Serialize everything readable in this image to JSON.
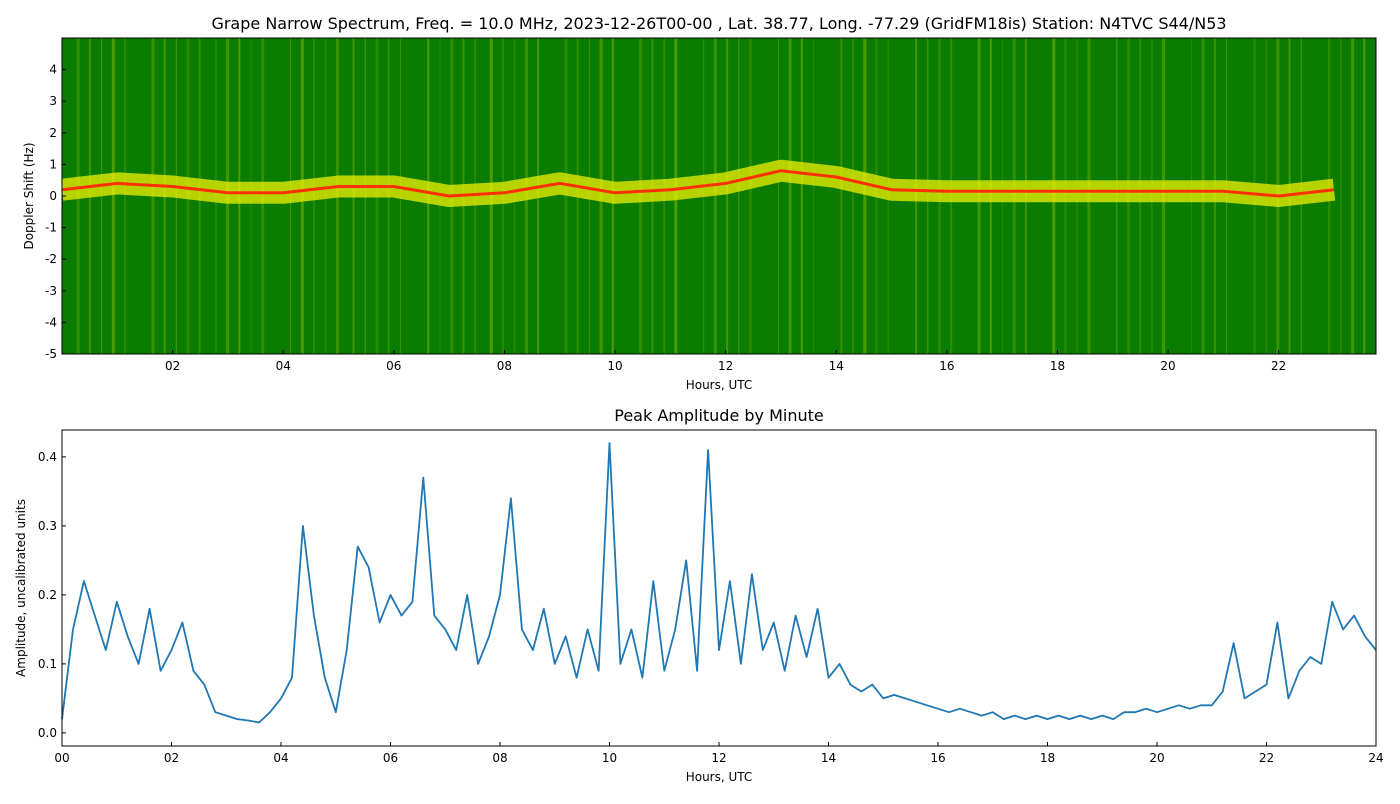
{
  "chart_data": [
    {
      "type": "spectrogram",
      "title": "Grape Narrow Spectrum, Freq. = 10.0 MHz, 2023-12-26T00-00 , Lat.  38.77, Long. -77.29 (GridFM18is) Station: N4TVC S44/N53",
      "x_label": "Hours, UTC",
      "y_label": "Doppler Shift (Hz)",
      "xlim": [
        0,
        23.76
      ],
      "ylim": [
        -5,
        5
      ],
      "xticks": [
        {
          "value": 2,
          "label": "02"
        },
        {
          "value": 4,
          "label": "04"
        },
        {
          "value": 6,
          "label": "06"
        },
        {
          "value": 8,
          "label": "08"
        },
        {
          "value": 10,
          "label": "10"
        },
        {
          "value": 12,
          "label": "12"
        },
        {
          "value": 14,
          "label": "14"
        },
        {
          "value": 16,
          "label": "16"
        },
        {
          "value": 18,
          "label": "18"
        },
        {
          "value": 20,
          "label": "20"
        },
        {
          "value": 22,
          "label": "22"
        }
      ],
      "yticks": [
        -5,
        -4,
        -3,
        -2,
        -1,
        0,
        1,
        2,
        3,
        4
      ],
      "background_color": "#0a7d00",
      "band_color": "#f0f000",
      "peak_color": "#ff3000",
      "x": [
        0,
        1,
        2,
        3,
        4,
        5,
        6,
        7,
        8,
        9,
        10,
        11,
        12,
        13,
        14,
        15,
        16,
        17,
        18,
        19,
        20,
        21,
        22,
        23
      ],
      "values": [
        0.2,
        0.4,
        0.3,
        0.1,
        0.1,
        0.3,
        0.3,
        0.0,
        0.1,
        0.4,
        0.1,
        0.2,
        0.4,
        0.8,
        0.6,
        0.2,
        0.15,
        0.15,
        0.15,
        0.15,
        0.15,
        0.15,
        0.0,
        0.2
      ]
    },
    {
      "type": "line",
      "title": "Peak Amplitude by Minute",
      "x_label": "Hours, UTC",
      "y_label": "Amplitude, uncalibrated units",
      "color": "#1f77b4",
      "xlim": [
        0,
        24
      ],
      "ylim": [
        -0.019,
        0.439
      ],
      "xticks": [
        {
          "value": 0,
          "label": "00"
        },
        {
          "value": 2,
          "label": "02"
        },
        {
          "value": 4,
          "label": "04"
        },
        {
          "value": 6,
          "label": "06"
        },
        {
          "value": 8,
          "label": "08"
        },
        {
          "value": 10,
          "label": "10"
        },
        {
          "value": 12,
          "label": "12"
        },
        {
          "value": 14,
          "label": "14"
        },
        {
          "value": 16,
          "label": "16"
        },
        {
          "value": 18,
          "label": "18"
        },
        {
          "value": 20,
          "label": "20"
        },
        {
          "value": 22,
          "label": "22"
        },
        {
          "value": 24,
          "label": "24"
        }
      ],
      "yticks": [
        {
          "value": 0,
          "label": "0.0"
        },
        0.1,
        0.2,
        0.3,
        0.4
      ],
      "x": [
        0,
        0.2,
        0.4,
        0.6,
        0.8,
        1,
        1.2,
        1.4,
        1.6,
        1.8,
        2,
        2.2,
        2.4,
        2.6,
        2.8,
        3,
        3.2,
        3.4,
        3.6,
        3.8,
        4,
        4.2,
        4.4,
        4.6,
        4.8,
        5,
        5.2,
        5.4,
        5.6,
        5.8,
        6,
        6.2,
        6.4,
        6.6,
        6.8,
        7,
        7.2,
        7.4,
        7.6,
        7.8,
        8,
        8.2,
        8.4,
        8.6,
        8.8,
        9,
        9.2,
        9.4,
        9.6,
        9.8,
        10,
        10.2,
        10.4,
        10.6,
        10.8,
        11,
        11.2,
        11.4,
        11.6,
        11.8,
        12,
        12.2,
        12.4,
        12.6,
        12.8,
        13,
        13.2,
        13.4,
        13.6,
        13.8,
        14,
        14.2,
        14.4,
        14.6,
        14.8,
        15,
        15.2,
        15.4,
        15.6,
        15.8,
        16,
        16.2,
        16.4,
        16.6,
        16.8,
        17,
        17.2,
        17.4,
        17.6,
        17.8,
        18,
        18.2,
        18.4,
        18.6,
        18.8,
        19,
        19.2,
        19.4,
        19.6,
        19.8,
        20,
        20.2,
        20.4,
        20.6,
        20.8,
        21,
        21.2,
        21.4,
        21.6,
        21.8,
        22,
        22.2,
        22.4,
        22.6,
        22.8,
        23,
        23.2,
        23.4,
        23.6,
        23.8,
        24
      ],
      "values": [
        0.02,
        0.15,
        0.22,
        0.17,
        0.12,
        0.19,
        0.14,
        0.1,
        0.18,
        0.09,
        0.12,
        0.16,
        0.09,
        0.07,
        0.03,
        0.025,
        0.02,
        0.018,
        0.015,
        0.03,
        0.05,
        0.08,
        0.3,
        0.17,
        0.08,
        0.03,
        0.12,
        0.27,
        0.24,
        0.16,
        0.2,
        0.17,
        0.19,
        0.37,
        0.17,
        0.15,
        0.12,
        0.2,
        0.1,
        0.14,
        0.2,
        0.34,
        0.15,
        0.12,
        0.18,
        0.1,
        0.14,
        0.08,
        0.15,
        0.09,
        0.42,
        0.1,
        0.15,
        0.08,
        0.22,
        0.09,
        0.15,
        0.25,
        0.09,
        0.41,
        0.12,
        0.22,
        0.1,
        0.23,
        0.12,
        0.16,
        0.09,
        0.17,
        0.11,
        0.18,
        0.08,
        0.1,
        0.07,
        0.06,
        0.07,
        0.05,
        0.055,
        0.05,
        0.045,
        0.04,
        0.035,
        0.03,
        0.035,
        0.03,
        0.025,
        0.03,
        0.02,
        0.025,
        0.02,
        0.025,
        0.02,
        0.025,
        0.02,
        0.025,
        0.02,
        0.025,
        0.02,
        0.03,
        0.03,
        0.035,
        0.03,
        0.035,
        0.04,
        0.035,
        0.04,
        0.04,
        0.06,
        0.13,
        0.05,
        0.06,
        0.07,
        0.16,
        0.05,
        0.09,
        0.11,
        0.1,
        0.19,
        0.15,
        0.17,
        0.14,
        0.12
      ]
    }
  ]
}
